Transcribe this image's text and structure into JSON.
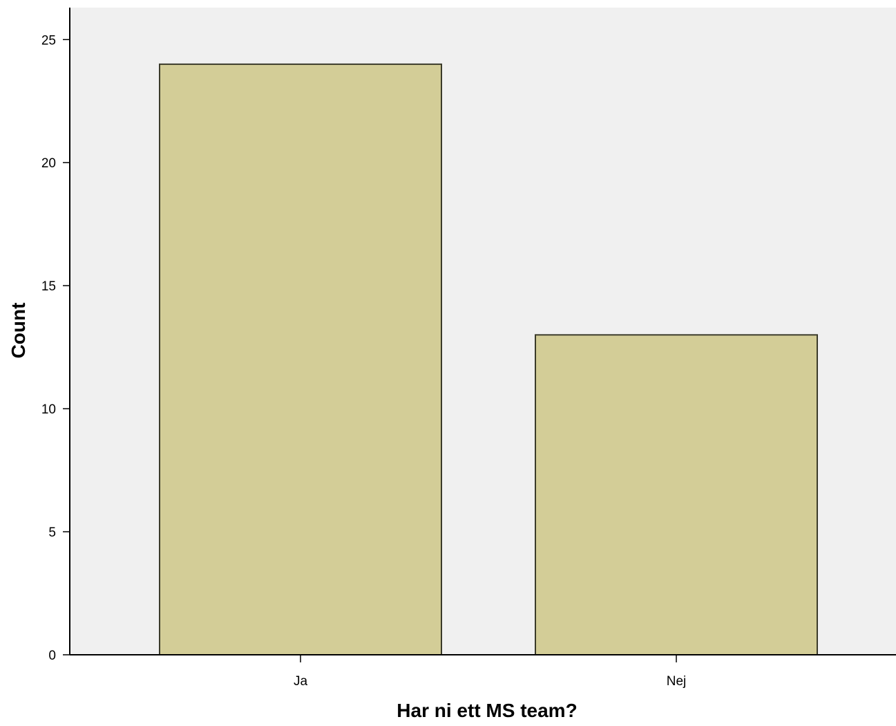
{
  "chart_data": {
    "type": "bar",
    "title": "",
    "xlabel": "Har ni ett MS team?",
    "ylabel": "Count",
    "categories": [
      "Ja",
      "Nej"
    ],
    "values": [
      24,
      13
    ],
    "ylim": [
      0,
      26.3
    ],
    "yticks": [
      0,
      5,
      10,
      15,
      20,
      25
    ],
    "grid": false,
    "legend": "none"
  },
  "colors": {
    "plot_background": "#f0f0f0",
    "bar_fill": "#d3cd97",
    "bar_stroke": "#3a3a2a",
    "axis": "#000000"
  }
}
